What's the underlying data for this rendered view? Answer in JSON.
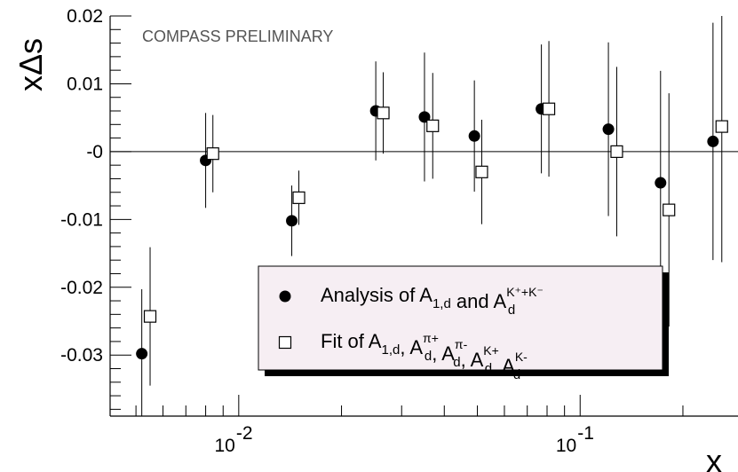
{
  "chart_data": {
    "type": "scatter",
    "annotation": "COMPASS PRELIMINARY",
    "xlabel": "x",
    "ylabel": "xΔs",
    "xscale": "log",
    "xlim": [
      0.0042,
      0.29
    ],
    "ylim": [
      -0.039,
      0.02
    ],
    "yticks": [
      0.02,
      0.01,
      0,
      -0.01,
      -0.02,
      -0.03
    ],
    "ytick_labels": [
      "0.02",
      "0.01",
      "-0",
      "-0.01",
      "-0.02",
      "-0.03"
    ],
    "xticks": [
      0.01,
      0.1
    ],
    "xtick_base": "10",
    "xtick_exponents": [
      "-2",
      "-1"
    ],
    "zero_line": true,
    "grid": false,
    "legend": {
      "placement": "bottom-center",
      "entries": [
        {
          "marker": "filled-circle",
          "parts": [
            {
              "t": "Analysis of A"
            },
            {
              "sub": "1,d"
            },
            {
              "t": " and A"
            },
            {
              "sub": "d",
              "sup": "K⁺+K⁻"
            }
          ]
        },
        {
          "marker": "open-square",
          "parts": [
            {
              "t": "Fit of A"
            },
            {
              "sub": "1,d"
            },
            {
              "t": ", A"
            },
            {
              "sub": "d",
              "sup": "π+"
            },
            {
              "t": ", A"
            },
            {
              "sub": "d",
              "sup": "π-"
            },
            {
              "t": ", A"
            },
            {
              "sub": "d",
              "sup": "K+"
            },
            {
              "t": ", A"
            },
            {
              "sub": "d",
              "sup": "K-"
            }
          ]
        }
      ]
    },
    "series": [
      {
        "marker": "filled-circle",
        "points": [
          {
            "x": 0.0052,
            "y": -0.0298,
            "err": 0.0095
          },
          {
            "x": 0.008,
            "y": -0.0013,
            "err": 0.007
          },
          {
            "x": 0.0143,
            "y": -0.0102,
            "err": 0.0052
          },
          {
            "x": 0.0252,
            "y": 0.006,
            "err": 0.0073
          },
          {
            "x": 0.035,
            "y": 0.0051,
            "err": 0.0095
          },
          {
            "x": 0.049,
            "y": 0.0023,
            "err": 0.0082
          },
          {
            "x": 0.077,
            "y": 0.0063,
            "err": 0.0095
          },
          {
            "x": 0.121,
            "y": 0.0033,
            "err": 0.0128
          },
          {
            "x": 0.172,
            "y": -0.0046,
            "err": 0.0165
          },
          {
            "x": 0.245,
            "y": 0.0015,
            "err": 0.0175
          }
        ]
      },
      {
        "marker": "open-square",
        "points": [
          {
            "x": 0.0055,
            "y": -0.0243,
            "err": 0.0102
          },
          {
            "x": 0.0084,
            "y": -0.0003,
            "err": 0.0057
          },
          {
            "x": 0.015,
            "y": -0.0068,
            "err": 0.004
          },
          {
            "x": 0.0265,
            "y": 0.0057,
            "err": 0.006
          },
          {
            "x": 0.037,
            "y": 0.0038,
            "err": 0.0078
          },
          {
            "x": 0.0515,
            "y": -0.003,
            "err": 0.0077
          },
          {
            "x": 0.081,
            "y": 0.0063,
            "err": 0.01
          },
          {
            "x": 0.128,
            "y": 0.0,
            "err": 0.0125
          },
          {
            "x": 0.182,
            "y": -0.0086,
            "err": 0.0172
          },
          {
            "x": 0.26,
            "y": 0.0037,
            "err": 0.02
          }
        ]
      }
    ]
  }
}
